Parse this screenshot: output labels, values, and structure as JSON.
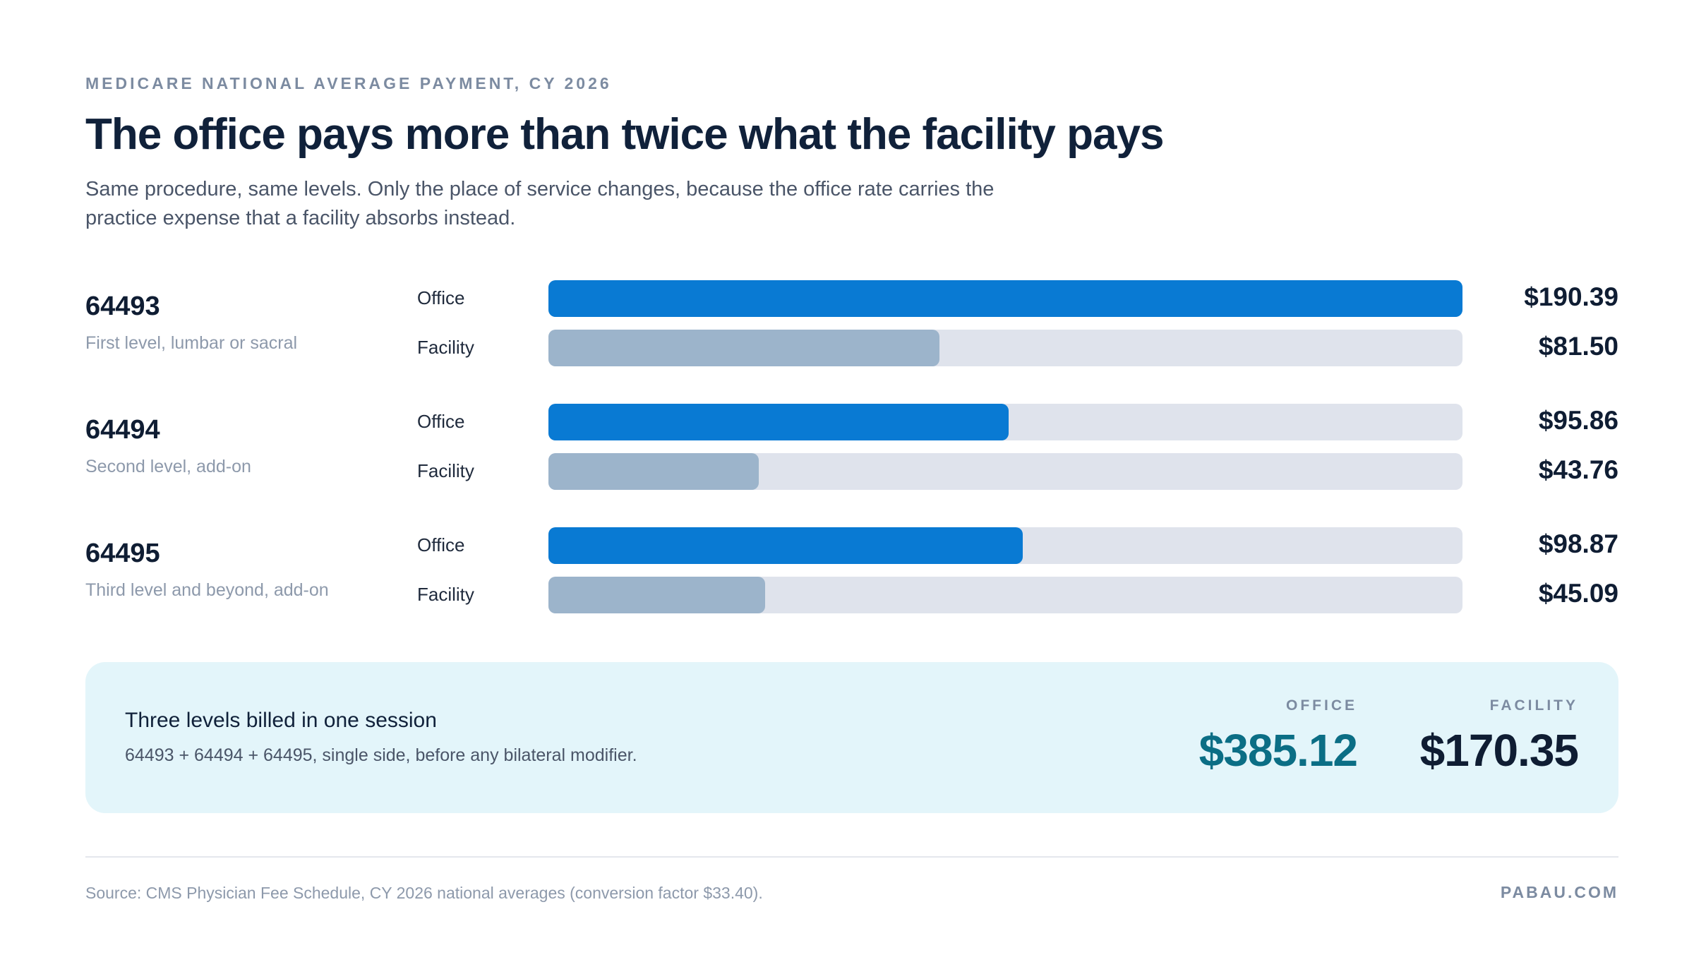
{
  "header": {
    "eyebrow": "MEDICARE NATIONAL AVERAGE PAYMENT, CY 2026",
    "title": "The office pays more than twice what the facility pays",
    "subtitle": "Same procedure, same levels. Only the place of service changes, because the office rate carries the practice expense that a facility absorbs instead."
  },
  "chart_data": {
    "type": "bar",
    "orientation": "horizontal",
    "series_names": [
      "Office",
      "Facility"
    ],
    "xlim": [
      0,
      190.39
    ],
    "groups": [
      {
        "code": "64493",
        "description": "First level, lumbar or sacral",
        "bars": [
          {
            "label": "Office",
            "value": 190.39,
            "display": "$190.39"
          },
          {
            "label": "Facility",
            "value": 81.5,
            "display": "$81.50"
          }
        ]
      },
      {
        "code": "64494",
        "description": "Second level, add-on",
        "bars": [
          {
            "label": "Office",
            "value": 95.86,
            "display": "$95.86"
          },
          {
            "label": "Facility",
            "value": 43.76,
            "display": "$43.76"
          }
        ]
      },
      {
        "code": "64495",
        "description": "Third level and beyond, add-on",
        "bars": [
          {
            "label": "Office",
            "value": 98.87,
            "display": "$98.87"
          },
          {
            "label": "Facility",
            "value": 45.09,
            "display": "$45.09"
          }
        ]
      }
    ],
    "colors": {
      "office": "#097ad3",
      "facility": "#9cb4cb",
      "track": "#dfe3ec"
    }
  },
  "summary": {
    "title": "Three levels billed in one session",
    "subtitle": "64493 + 64494 + 64495, single side, before any bilateral modifier.",
    "office_caption": "OFFICE",
    "office_total": "$385.12",
    "facility_caption": "FACILITY",
    "facility_total": "$170.35"
  },
  "footer": {
    "source": "Source: CMS Physician Fee Schedule, CY 2026 national averages (conversion factor $33.40).",
    "brand": "PABAU.COM"
  }
}
